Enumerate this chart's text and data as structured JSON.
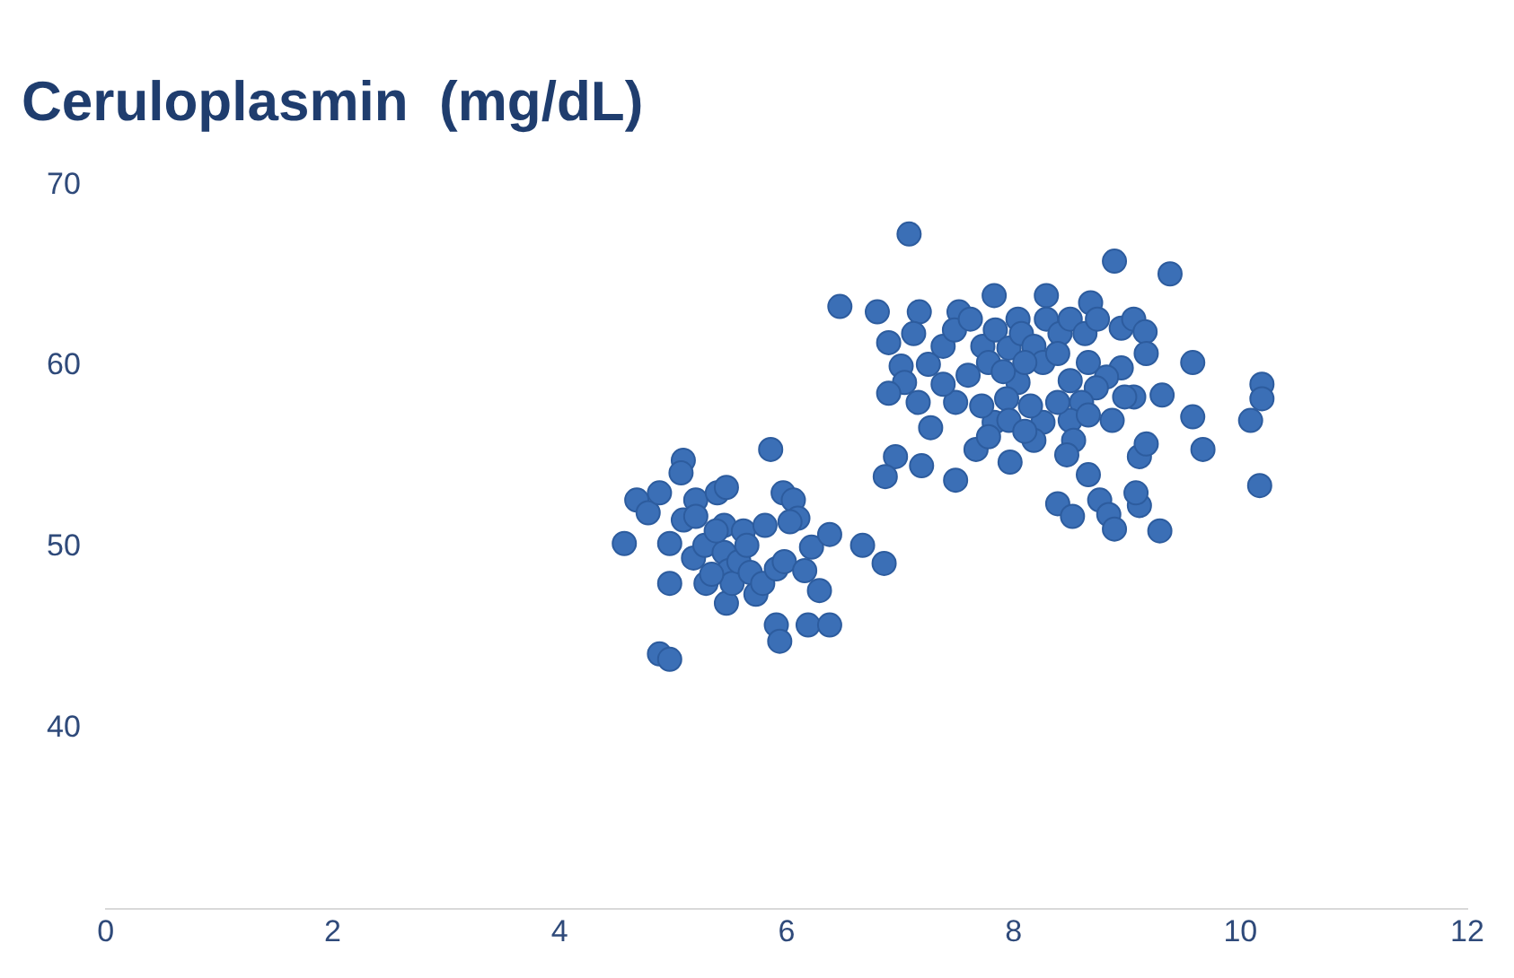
{
  "chart_data": {
    "type": "scatter",
    "title": "Ceruloplasmin  (mg/dL)",
    "color": "#3b6fb6",
    "marker": "circle",
    "grid": false,
    "legend": false,
    "xlim": [
      0,
      12
    ],
    "xticks": [
      0,
      2,
      4,
      6,
      8,
      10,
      12
    ],
    "ylim": [
      30,
      70
    ],
    "yticks": [
      40,
      50,
      60,
      70
    ],
    "x": [
      4.57,
      4.68,
      4.78,
      4.88,
      4.88,
      4.97,
      4.97,
      4.97,
      5.09,
      5.07,
      5.09,
      5.2,
      5.2,
      5.18,
      5.28,
      5.29,
      5.39,
      5.47,
      5.45,
      5.45,
      5.49,
      5.47,
      5.52,
      5.62,
      5.58,
      5.68,
      5.73,
      5.79,
      5.81,
      5.86,
      5.91,
      5.91,
      5.94,
      5.97,
      5.98,
      6.06,
      6.1,
      6.16,
      6.19,
      6.22,
      6.29,
      6.38,
      6.38,
      6.67,
      6.86,
      5.38,
      5.65,
      6.03,
      5.34,
      6.47,
      6.8,
      7.08,
      7.17,
      7.52,
      7.83,
      8.04,
      8.29,
      8.68,
      8.89,
      9.38,
      6.9,
      7.01,
      7.12,
      7.25,
      7.38,
      7.48,
      7.62,
      7.73,
      7.84,
      7.96,
      8.07,
      8.18,
      8.29,
      8.41,
      8.5,
      8.63,
      8.74,
      8.95,
      9.06,
      9.16,
      9.17,
      8.95,
      8.82,
      8.73,
      8.6,
      8.5,
      8.39,
      8.26,
      8.15,
      8.04,
      7.94,
      7.83,
      7.72,
      7.6,
      7.49,
      7.38,
      7.27,
      7.16,
      7.04,
      6.9,
      7.19,
      6.96,
      6.87,
      7.49,
      7.67,
      7.97,
      8.18,
      8.39,
      8.52,
      8.66,
      8.76,
      8.84,
      8.89,
      9.11,
      9.08,
      9.11,
      9.17,
      9.29,
      9.58,
      9.58,
      9.67,
      10.09,
      10.19,
      10.19,
      10.17,
      9.31,
      9.06,
      8.87,
      8.66,
      8.53,
      8.47,
      7.78,
      7.96,
      8.1,
      8.26,
      8.39,
      7.78,
      7.91,
      8.1,
      8.5,
      8.66,
      8.98
    ],
    "values": [
      50.2,
      52.6,
      51.9,
      53.0,
      44.1,
      43.8,
      48.0,
      50.2,
      54.8,
      54.1,
      51.5,
      52.6,
      51.7,
      49.4,
      50.1,
      48.0,
      53.0,
      53.3,
      51.2,
      49.7,
      48.7,
      46.9,
      48.0,
      50.9,
      49.2,
      48.6,
      47.4,
      48.0,
      51.2,
      55.4,
      48.8,
      45.7,
      44.8,
      53.0,
      49.2,
      52.6,
      51.6,
      48.7,
      45.7,
      50.0,
      47.6,
      45.7,
      50.7,
      50.1,
      49.1,
      50.9,
      50.1,
      51.4,
      48.5,
      63.3,
      63.0,
      67.3,
      63.0,
      63.0,
      63.9,
      62.6,
      63.9,
      63.5,
      65.8,
      65.1,
      61.3,
      60.0,
      61.8,
      60.1,
      61.1,
      62.0,
      62.6,
      61.1,
      62.0,
      61.0,
      61.8,
      61.1,
      62.6,
      61.8,
      62.6,
      61.8,
      62.6,
      62.1,
      62.6,
      61.9,
      60.7,
      59.9,
      59.4,
      58.8,
      58.0,
      57.0,
      58.0,
      56.9,
      57.8,
      59.1,
      58.2,
      56.9,
      57.8,
      59.5,
      58.0,
      59.0,
      56.6,
      58.0,
      59.1,
      58.5,
      54.5,
      55.0,
      53.9,
      53.7,
      55.4,
      54.7,
      55.9,
      52.4,
      51.7,
      54.0,
      52.6,
      51.8,
      51.0,
      52.3,
      53.0,
      55.0,
      55.7,
      50.9,
      57.2,
      60.2,
      55.4,
      57.0,
      59.0,
      58.2,
      53.4,
      58.4,
      58.3,
      57.0,
      57.3,
      55.9,
      55.1,
      56.1,
      57.0,
      56.4,
      60.2,
      60.7,
      60.2,
      59.7,
      60.2,
      59.2,
      60.2,
      58.3
    ]
  }
}
